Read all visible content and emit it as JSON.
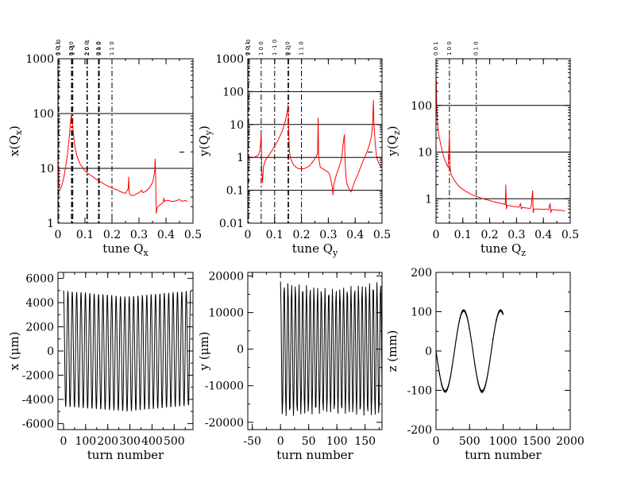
{
  "chart_data": [
    {
      "type": "line",
      "id": "spec-x",
      "xlabel": "tune Q",
      "xlabel_sub": "x",
      "ylabel": "x(Q",
      "ylabel_sub": "x",
      "ylabel_close": ")",
      "xlim": [
        0,
        0.5
      ],
      "ylim": [
        1,
        1000
      ],
      "yscale": "log",
      "xticks": [
        "0",
        "0.1",
        "0.2",
        "0.3",
        "0.4",
        "0.5"
      ],
      "yticks": [
        "1",
        "10",
        "100",
        "1000"
      ],
      "gridlines_y": [
        10,
        100
      ],
      "resonances": [
        {
          "x": 0.0,
          "label": "0 0 1"
        },
        {
          "x": 0.003,
          "label": "1 -1 0"
        },
        {
          "x": 0.05,
          "label": "1 0 0"
        },
        {
          "x": 0.052,
          "label": "0 -1"
        },
        {
          "x": 0.055,
          "label": "1 -1"
        },
        {
          "x": 0.107,
          "label": "2 0 0"
        },
        {
          "x": 0.109,
          "label": "2 0 -1"
        },
        {
          "x": 0.15,
          "label": "0 1 0"
        },
        {
          "x": 0.153,
          "label": "3 0 0"
        },
        {
          "x": 0.2,
          "label": "1 1 0"
        }
      ],
      "series": [
        {
          "color": "#ff0000",
          "points": [
            [
              0.001,
              12
            ],
            [
              0.003,
              6
            ],
            [
              0.006,
              4.2
            ],
            [
              0.01,
              4.3
            ],
            [
              0.015,
              5
            ],
            [
              0.02,
              6.3
            ],
            [
              0.025,
              8.5
            ],
            [
              0.03,
              12
            ],
            [
              0.035,
              18
            ],
            [
              0.04,
              30
            ],
            [
              0.044,
              50
            ],
            [
              0.047,
              75
            ],
            [
              0.05,
              95
            ],
            [
              0.053,
              75
            ],
            [
              0.056,
              50
            ],
            [
              0.06,
              32
            ],
            [
              0.065,
              22
            ],
            [
              0.07,
              17
            ],
            [
              0.08,
              12.5
            ],
            [
              0.09,
              10.5
            ],
            [
              0.1,
              9
            ],
            [
              0.11,
              8.2
            ],
            [
              0.12,
              7.5
            ],
            [
              0.13,
              7
            ],
            [
              0.14,
              6.4
            ],
            [
              0.15,
              6
            ],
            [
              0.16,
              5.6
            ],
            [
              0.17,
              5.2
            ],
            [
              0.18,
              4.9
            ],
            [
              0.19,
              4.6
            ],
            [
              0.2,
              4.4
            ],
            [
              0.21,
              4.2
            ],
            [
              0.22,
              4
            ],
            [
              0.23,
              3.8
            ],
            [
              0.24,
              3.6
            ],
            [
              0.25,
              3.5
            ],
            [
              0.255,
              3.8
            ],
            [
              0.26,
              4.3
            ],
            [
              0.262,
              7
            ],
            [
              0.263,
              4
            ],
            [
              0.265,
              3.4
            ],
            [
              0.27,
              3.2
            ],
            [
              0.28,
              3.2
            ],
            [
              0.29,
              3.4
            ],
            [
              0.3,
              3.6
            ],
            [
              0.31,
              4
            ],
            [
              0.315,
              3.6
            ],
            [
              0.32,
              3.7
            ],
            [
              0.33,
              4
            ],
            [
              0.34,
              4.5
            ],
            [
              0.35,
              5.5
            ],
            [
              0.355,
              7
            ],
            [
              0.358,
              9
            ],
            [
              0.36,
              15
            ],
            [
              0.362,
              6
            ],
            [
              0.364,
              1.5
            ],
            [
              0.366,
              1.8
            ],
            [
              0.37,
              2
            ],
            [
              0.38,
              2.2
            ],
            [
              0.39,
              2.4
            ],
            [
              0.392,
              2.9
            ],
            [
              0.394,
              2.5
            ],
            [
              0.4,
              2.6
            ],
            [
              0.41,
              2.6
            ],
            [
              0.42,
              2.5
            ],
            [
              0.43,
              2.5
            ],
            [
              0.44,
              2.6
            ],
            [
              0.45,
              2.7
            ],
            [
              0.46,
              2.5
            ],
            [
              0.47,
              2.6
            ],
            [
              0.48,
              2.5
            ]
          ]
        }
      ]
    },
    {
      "type": "line",
      "id": "spec-y",
      "xlabel": "tune Q",
      "xlabel_sub": "y",
      "ylabel": "y(Q",
      "ylabel_sub": "y",
      "ylabel_close": ")",
      "xlim": [
        0,
        0.5
      ],
      "ylim": [
        0.01,
        1000
      ],
      "yscale": "log",
      "xticks": [
        "0",
        "0.1",
        "0.2",
        "0.3",
        "0.4",
        "0.5"
      ],
      "yticks": [
        "0.01",
        "0.1",
        "1",
        "10",
        "100",
        "1000"
      ],
      "gridlines_y": [
        0.1,
        1,
        10,
        100
      ],
      "resonances": [
        {
          "x": 0.0,
          "label": "0 0 1"
        },
        {
          "x": 0.003,
          "label": "1 -1 0"
        },
        {
          "x": 0.05,
          "label": "1 0 0"
        },
        {
          "x": 0.1,
          "label": "1 -1 0"
        },
        {
          "x": 0.15,
          "label": "0 1 0"
        },
        {
          "x": 0.152,
          "label": "1 -1"
        },
        {
          "x": 0.2,
          "label": "1 1 0"
        }
      ],
      "series": [
        {
          "color": "#ff0000",
          "points": [
            [
              0.001,
              1.1
            ],
            [
              0.01,
              1
            ],
            [
              0.02,
              1
            ],
            [
              0.03,
              1.05
            ],
            [
              0.04,
              1.2
            ],
            [
              0.045,
              1.6
            ],
            [
              0.048,
              3
            ],
            [
              0.05,
              6
            ],
            [
              0.052,
              0.4
            ],
            [
              0.055,
              0.17
            ],
            [
              0.058,
              0.5
            ],
            [
              0.065,
              0.8
            ],
            [
              0.08,
              1.2
            ],
            [
              0.09,
              1.6
            ],
            [
              0.1,
              2.2
            ],
            [
              0.11,
              3
            ],
            [
              0.12,
              4.5
            ],
            [
              0.13,
              7
            ],
            [
              0.14,
              13
            ],
            [
              0.145,
              20
            ],
            [
              0.15,
              40
            ],
            [
              0.152,
              8
            ],
            [
              0.155,
              1.5
            ],
            [
              0.16,
              0.9
            ],
            [
              0.17,
              0.6
            ],
            [
              0.18,
              0.5
            ],
            [
              0.19,
              0.45
            ],
            [
              0.2,
              0.45
            ],
            [
              0.21,
              0.45
            ],
            [
              0.22,
              0.5
            ],
            [
              0.23,
              0.55
            ],
            [
              0.24,
              0.7
            ],
            [
              0.25,
              0.9
            ],
            [
              0.26,
              1.3
            ],
            [
              0.262,
              16
            ],
            [
              0.264,
              1
            ],
            [
              0.27,
              0.5
            ],
            [
              0.28,
              0.45
            ],
            [
              0.29,
              0.4
            ],
            [
              0.3,
              0.35
            ],
            [
              0.305,
              0.3
            ],
            [
              0.31,
              0.2
            ],
            [
              0.315,
              0.12
            ],
            [
              0.317,
              0.07
            ],
            [
              0.32,
              0.14
            ],
            [
              0.33,
              0.3
            ],
            [
              0.34,
              0.5
            ],
            [
              0.35,
              1
            ],
            [
              0.355,
              2.5
            ],
            [
              0.36,
              5
            ],
            [
              0.362,
              1
            ],
            [
              0.365,
              0.3
            ],
            [
              0.37,
              0.15
            ],
            [
              0.38,
              0.1
            ],
            [
              0.385,
              0.09
            ],
            [
              0.39,
              0.12
            ],
            [
              0.4,
              0.2
            ],
            [
              0.41,
              0.3
            ],
            [
              0.42,
              0.5
            ],
            [
              0.43,
              0.8
            ],
            [
              0.44,
              1.2
            ],
            [
              0.45,
              2
            ],
            [
              0.46,
              4
            ],
            [
              0.465,
              10
            ],
            [
              0.468,
              55
            ],
            [
              0.47,
              10
            ],
            [
              0.475,
              2.5
            ],
            [
              0.48,
              1
            ],
            [
              0.49,
              0.6
            ],
            [
              0.5,
              0.5
            ]
          ]
        }
      ]
    },
    {
      "type": "line",
      "id": "spec-z",
      "xlabel": "tune Q",
      "xlabel_sub": "z",
      "ylabel": "y(Q",
      "ylabel_sub": "z",
      "ylabel_close": ")",
      "xlim": [
        0,
        0.5
      ],
      "ylim": [
        0.3,
        1000
      ],
      "yscale": "log",
      "xticks": [
        "0",
        "0.1",
        "0.2",
        "0.3",
        "0.4",
        "0.5"
      ],
      "yticks": [
        "1",
        "10",
        "100"
      ],
      "gridlines_y": [
        1,
        10,
        100
      ],
      "resonances": [
        {
          "x": 0.0,
          "label": "0 0 1"
        },
        {
          "x": 0.05,
          "label": "1 0 0"
        },
        {
          "x": 0.15,
          "label": "0 1 0"
        }
      ],
      "series": [
        {
          "color": "#ff0000",
          "points": [
            [
              0.001,
              350
            ],
            [
              0.003,
              80
            ],
            [
              0.006,
              40
            ],
            [
              0.01,
              24
            ],
            [
              0.015,
              17
            ],
            [
              0.02,
              12.5
            ],
            [
              0.025,
              9.5
            ],
            [
              0.03,
              7.5
            ],
            [
              0.035,
              6.3
            ],
            [
              0.04,
              5.4
            ],
            [
              0.045,
              4.8
            ],
            [
              0.048,
              12
            ],
            [
              0.05,
              25
            ],
            [
              0.052,
              5
            ],
            [
              0.055,
              3.5
            ],
            [
              0.06,
              3
            ],
            [
              0.07,
              2.4
            ],
            [
              0.08,
              2
            ],
            [
              0.09,
              1.75
            ],
            [
              0.1,
              1.6
            ],
            [
              0.11,
              1.45
            ],
            [
              0.12,
              1.35
            ],
            [
              0.13,
              1.25
            ],
            [
              0.14,
              1.18
            ],
            [
              0.15,
              1.12
            ],
            [
              0.16,
              1.07
            ],
            [
              0.17,
              1.02
            ],
            [
              0.18,
              0.98
            ],
            [
              0.19,
              0.95
            ],
            [
              0.2,
              0.92
            ],
            [
              0.21,
              0.88
            ],
            [
              0.22,
              0.85
            ],
            [
              0.23,
              0.82
            ],
            [
              0.24,
              0.8
            ],
            [
              0.25,
              0.78
            ],
            [
              0.258,
              0.75
            ],
            [
              0.26,
              2
            ],
            [
              0.262,
              0.6
            ],
            [
              0.265,
              0.72
            ],
            [
              0.27,
              0.72
            ],
            [
              0.28,
              0.7
            ],
            [
              0.29,
              0.68
            ],
            [
              0.3,
              0.67
            ],
            [
              0.31,
              0.66
            ],
            [
              0.315,
              0.8
            ],
            [
              0.318,
              0.6
            ],
            [
              0.32,
              0.65
            ],
            [
              0.33,
              0.64
            ],
            [
              0.34,
              0.63
            ],
            [
              0.35,
              0.62
            ],
            [
              0.355,
              0.7
            ],
            [
              0.36,
              1.5
            ],
            [
              0.362,
              0.5
            ],
            [
              0.365,
              0.6
            ],
            [
              0.37,
              0.6
            ],
            [
              0.38,
              0.6
            ],
            [
              0.39,
              0.6
            ],
            [
              0.4,
              0.59
            ],
            [
              0.41,
              0.6
            ],
            [
              0.42,
              0.58
            ],
            [
              0.425,
              0.8
            ],
            [
              0.428,
              0.5
            ],
            [
              0.43,
              0.58
            ],
            [
              0.44,
              0.58
            ],
            [
              0.45,
              0.57
            ],
            [
              0.46,
              0.57
            ],
            [
              0.47,
              0.56
            ],
            [
              0.48,
              0.55
            ]
          ]
        }
      ]
    },
    {
      "type": "line",
      "id": "turn-x",
      "xlabel": "turn number",
      "ylabel": "x (μm)",
      "xlim": [
        -25,
        585
      ],
      "ylim": [
        -6500,
        6500
      ],
      "xticks": [
        "0",
        "100",
        "200",
        "300",
        "400",
        "500"
      ],
      "yticks": [
        "-6000",
        "-4000",
        "-2000",
        "0",
        "2000",
        "4000",
        "6000"
      ],
      "signal": {
        "start": 0,
        "end": 575,
        "tune": 0.0505,
        "amp_top": [
          5000,
          4500,
          5000
        ],
        "amp_bottom": [
          -4600,
          -5000,
          -4500
        ]
      }
    },
    {
      "type": "line",
      "id": "turn-y",
      "xlabel": "turn number",
      "ylabel": "y (μm)",
      "xlim": [
        -58,
        180
      ],
      "ylim": [
        -22000,
        21000
      ],
      "xticks": [
        "-50",
        "0",
        "50",
        "100",
        "150"
      ],
      "yticks": [
        "-20000",
        "-10000",
        "0",
        "10000",
        "20000"
      ],
      "signal": {
        "start": 0,
        "end": 180,
        "tune": 0.152,
        "amp_top": [
          18500,
          16500,
          18500
        ],
        "amp_bottom": [
          -18500,
          -17500,
          -18500
        ]
      }
    },
    {
      "type": "line",
      "id": "turn-z",
      "xlabel": "turn number",
      "ylabel": "z (mm)",
      "xlim": [
        0,
        2000
      ],
      "ylim": [
        -200,
        200
      ],
      "xticks": [
        "0",
        "500",
        "1000",
        "1500",
        "2000"
      ],
      "yticks": [
        "-200",
        "-100",
        "0",
        "100",
        "200"
      ],
      "signal": {
        "start": 0,
        "end": 1000,
        "tune": 0.00182,
        "amp": 103,
        "phase_deg": 180,
        "offset": 0
      }
    }
  ]
}
